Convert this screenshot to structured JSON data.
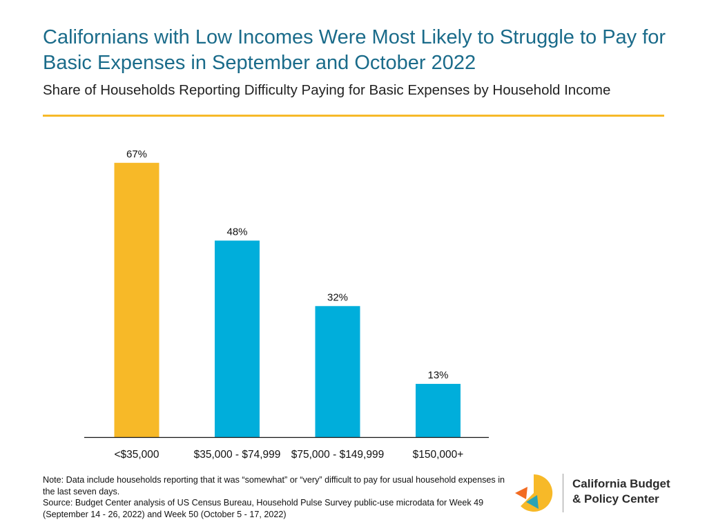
{
  "header": {
    "title": "Californians with Low Incomes Were Most Likely to Struggle to Pay for Basic Expenses in September and October 2022",
    "subtitle": "Share of Households Reporting Difficulty Paying for Basic Expenses by Household Income"
  },
  "colors": {
    "title": "#1a6b8a",
    "rule": "#f7b928",
    "highlight_bar": "#f7b928",
    "bar": "#00aedb",
    "logo_orange": "#f26b21",
    "logo_yellow": "#f7b928",
    "logo_teal": "#2aa3b5"
  },
  "chart_data": {
    "type": "bar",
    "categories": [
      "<$35,000",
      "$35,000 - $74,999",
      "$75,000 - $149,999",
      "$150,000+"
    ],
    "values": [
      67,
      48,
      32,
      13
    ],
    "data_labels": [
      "67%",
      "48%",
      "32%",
      "13%"
    ],
    "highlight_index": 0,
    "title": "Share of Households Reporting Difficulty Paying for Basic Expenses by Household Income",
    "xlabel": "",
    "ylabel": "",
    "ylim": [
      0,
      70
    ],
    "grid": false,
    "legend": "none"
  },
  "footer": {
    "note": "Note: Data include households reporting that it was “somewhat” or “very” difficult to pay for usual household expenses in the last seven days.",
    "source": "Source: Budget Center analysis of US Census Bureau, Household Pulse Survey public-use microdata for Week 49 (September 14 - 26, 2022) and Week 50 (October 5 - 17, 2022)"
  },
  "logo": {
    "line1": "California Budget",
    "line2": "& Policy Center",
    "icon": "california-budget-logo-icon"
  }
}
